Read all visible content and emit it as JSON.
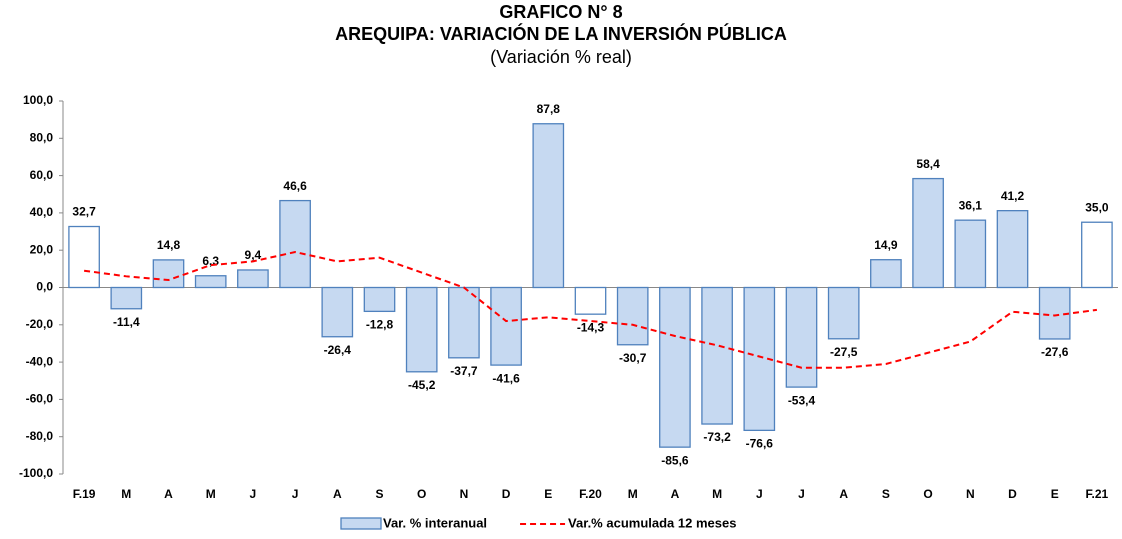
{
  "chart_data": {
    "type": "bar",
    "title": "GRAFICO N° 8",
    "subtitle": "AREQUIPA: VARIACIÓN DE LA INVERSIÓN PÚBLICA",
    "unit_note": "(Variación % real)",
    "categories": [
      "F.19",
      "M",
      "A",
      "M",
      "J",
      "J",
      "A",
      "S",
      "O",
      "N",
      "D",
      "E",
      "F.20",
      "M",
      "A",
      "M",
      "J",
      "J",
      "A",
      "S",
      "O",
      "N",
      "D",
      "E",
      "F.21"
    ],
    "series": [
      {
        "name": "Var. % interanual",
        "type": "bar",
        "color": "#c6d9f1",
        "stroke": "#4f81bd",
        "bar_colors": [
          "#ffffff",
          "#c6d9f1",
          "#c6d9f1",
          "#c6d9f1",
          "#c6d9f1",
          "#c6d9f1",
          "#c6d9f1",
          "#c6d9f1",
          "#c6d9f1",
          "#c6d9f1",
          "#c6d9f1",
          "#c6d9f1",
          "#ffffff",
          "#c6d9f1",
          "#c6d9f1",
          "#c6d9f1",
          "#c6d9f1",
          "#c6d9f1",
          "#c6d9f1",
          "#c6d9f1",
          "#c6d9f1",
          "#c6d9f1",
          "#c6d9f1",
          "#c6d9f1",
          "#ffffff"
        ],
        "values": [
          32.7,
          -11.4,
          14.8,
          6.3,
          9.4,
          46.6,
          -26.4,
          -12.8,
          -45.2,
          -37.7,
          -41.6,
          87.8,
          -14.3,
          -30.7,
          -85.6,
          -73.2,
          -76.6,
          -53.4,
          -27.5,
          14.9,
          58.4,
          36.1,
          41.2,
          -27.6,
          35.0
        ],
        "value_labels": [
          "32,7",
          "-11,4",
          "14,8",
          "6,3",
          "9,4",
          "46,6",
          "-26,4",
          "-12,8",
          "-45,2",
          "-37,7",
          "-41,6",
          "87,8",
          "-14,3",
          "-30,7",
          "-85,6",
          "-73,2",
          "-76,6",
          "-53,4",
          "-27,5",
          "14,9",
          "58,4",
          "36,1",
          "41,2",
          "-27,6",
          "35,0"
        ]
      },
      {
        "name": "Var.% acumulada 12 meses",
        "type": "line",
        "color": "#ff0000",
        "dashed": true,
        "values": [
          9,
          6,
          4,
          12,
          14,
          19,
          14,
          16,
          8,
          0,
          -18,
          -16,
          -18,
          -20,
          -26,
          -31,
          -37,
          -43,
          -43,
          -41,
          -35,
          -29,
          -13,
          -15,
          -12
        ]
      }
    ],
    "ylim": [
      -100,
      100
    ],
    "yticks": [
      {
        "value": -100,
        "label": "-100,0"
      },
      {
        "value": -80,
        "label": "-80,0"
      },
      {
        "value": -60,
        "label": "-60,0"
      },
      {
        "value": -40,
        "label": "-40,0"
      },
      {
        "value": -20,
        "label": "-20,0"
      },
      {
        "value": 0,
        "label": "0,0"
      },
      {
        "value": 20,
        "label": "20,0"
      },
      {
        "value": 40,
        "label": "40,0"
      },
      {
        "value": 60,
        "label": "60,0"
      },
      {
        "value": 80,
        "label": "80,0"
      },
      {
        "value": 100,
        "label": "100,0"
      }
    ],
    "grid": false
  }
}
